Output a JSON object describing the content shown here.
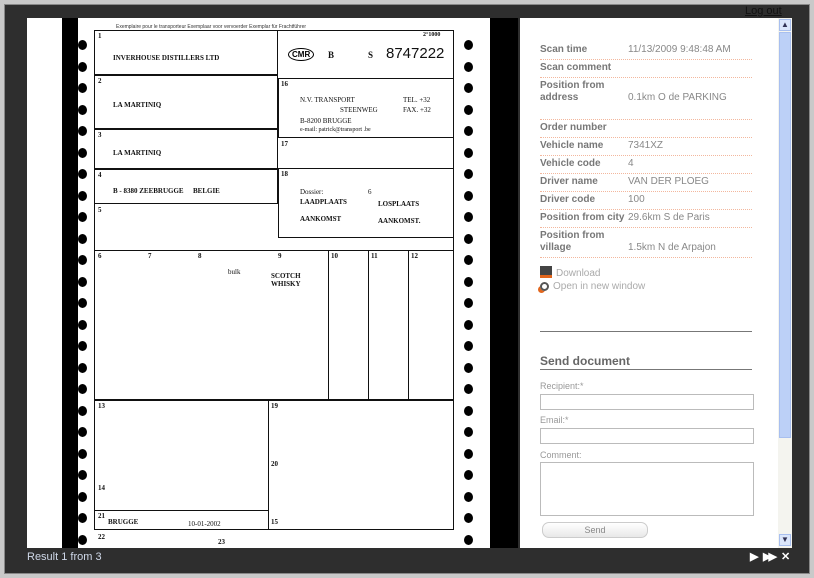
{
  "header": {
    "logout": "Log out"
  },
  "document": {
    "title_line": "Exemplaire pour le transporteur  Exemplaar voor vervoerder  Exemplar für Frachtführer",
    "cmr_label": "CMR",
    "cmr_b": "B",
    "cmr_s": "S",
    "cmr_number": "8747222",
    "form_code": "2°1000",
    "sender": "INVERHOUSE DISTILLERS LTD",
    "consignee": "LA MARTINIQ",
    "delivery": "LA MARTINIQ",
    "place_of_taking_over": "B - 8380 ZEEBRUGGE",
    "country": "BELGIE",
    "carrier_name": "N.V. TRANSPORT",
    "carrier_street": "STEENWEG",
    "carrier_tel": "TEL. +32",
    "carrier_fax": "FAX. +32",
    "carrier_city": "B-8200 BRUGGE",
    "carrier_email": "e-mail: patrick@transport .be",
    "dossier_label": "Dossier:",
    "dossier_value": "6",
    "laadplaats": "LAADPLAATS",
    "losplaats": "LOSPLAATS",
    "aankomst1": "AANKOMST",
    "aankomst2": "AANKOMST.",
    "goods_packing": "bulk",
    "goods_desc1": "SCOTCH",
    "goods_desc2": "WHISKY",
    "established_in": "BRUGGE",
    "date": "10-01-2002",
    "box_numbers": [
      "1",
      "2",
      "3",
      "4",
      "5",
      "6",
      "7",
      "8",
      "9",
      "10",
      "11",
      "12",
      "13",
      "14",
      "15",
      "16",
      "17",
      "18",
      "19",
      "20",
      "21",
      "22",
      "23"
    ]
  },
  "details": [
    {
      "label": "Scan time",
      "value": "11/13/2009 9:48:48 AM"
    },
    {
      "label": "Scan comment",
      "value": ""
    },
    {
      "label": "Position from address",
      "value": "0.1km O de PARKING"
    },
    {
      "label": "Order number",
      "value": ""
    },
    {
      "label": "Vehicle name",
      "value": "7341XZ"
    },
    {
      "label": "Vehicle code",
      "value": "4"
    },
    {
      "label": "Driver name",
      "value": "VAN DER PLOEG"
    },
    {
      "label": "Driver code",
      "value": "100"
    },
    {
      "label": "Position from city",
      "value": "29.6km S de Paris"
    },
    {
      "label": "Position from village",
      "value": "1.5km N de Arpajon"
    }
  ],
  "actions": {
    "download": "Download",
    "open_new": "Open in new window"
  },
  "send": {
    "title": "Send document",
    "recipient_label": "Recipient:*",
    "recipient_value": "",
    "email_label": "Email:*",
    "email_value": "",
    "comment_label": "Comment:",
    "comment_value": "",
    "send_button": "Send"
  },
  "footer": {
    "result": "Result 1 from 3",
    "next": "▶",
    "last": "▶▶",
    "close": "✕"
  },
  "colors": {
    "frame": "#2e2e2e",
    "divider": "#f3b79d",
    "scroll_thumb": "#bcd0f7"
  }
}
